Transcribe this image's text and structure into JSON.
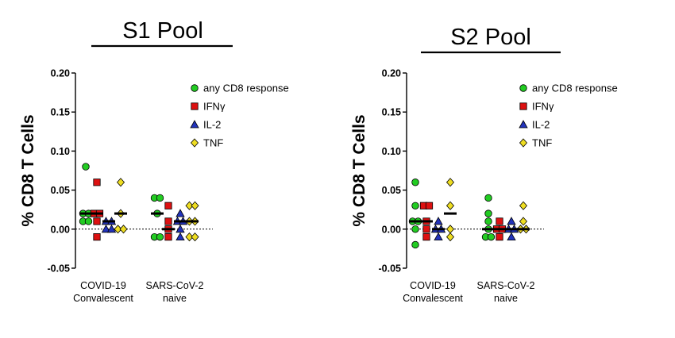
{
  "chart_data": [
    {
      "type": "scatter",
      "title": "S1 Pool",
      "ylabel": "% CD8 T Cells",
      "ylim": [
        -0.05,
        0.2
      ],
      "yticks": [
        "-0.05",
        "0.00",
        "0.05",
        "0.10",
        "0.15",
        "0.20"
      ],
      "categories": [
        "COVID-19\nConvalescent",
        "SARS-CoV-2\nnaive"
      ],
      "reference_line": 0,
      "legend_position": "top-right",
      "series": [
        {
          "name": "any CD8 response",
          "marker": "circle",
          "color": "#22cc22",
          "groups": [
            [
              0.08,
              0.02,
              0.02,
              0.01,
              0.01
            ],
            [
              0.04,
              0.04,
              0.02,
              -0.01,
              -0.01
            ]
          ],
          "medians": [
            0.02,
            0.02
          ]
        },
        {
          "name": "IFNγ",
          "marker": "square",
          "color": "#dd1111",
          "groups": [
            [
              0.06,
              0.02,
              0.02,
              0.01,
              -0.01
            ],
            [
              0.03,
              0.01,
              0.0,
              -0.01
            ]
          ],
          "medians": [
            0.02,
            0.0
          ]
        },
        {
          "name": "IL-2",
          "marker": "triangle",
          "color": "#2233bb",
          "groups": [
            [
              0.01,
              0.01,
              0.0,
              0.0
            ],
            [
              0.02,
              0.01,
              0.01,
              0.0,
              -0.01
            ]
          ],
          "medians": [
            0.01,
            0.01
          ]
        },
        {
          "name": "TNF",
          "marker": "diamond",
          "color": "#eedd22",
          "groups": [
            [
              0.06,
              0.02,
              0.0,
              0.0
            ],
            [
              0.03,
              0.03,
              0.01,
              0.01,
              -0.01,
              -0.01
            ]
          ],
          "medians": [
            0.02,
            0.01
          ]
        }
      ]
    },
    {
      "type": "scatter",
      "title": "S2 Pool",
      "ylabel": "% CD8 T Cells",
      "ylim": [
        -0.05,
        0.2
      ],
      "yticks": [
        "-0.05",
        "0.00",
        "0.05",
        "0.10",
        "0.15",
        "0.20"
      ],
      "categories": [
        "COVID-19\nConvalescent",
        "SARS-CoV-2\nnaive"
      ],
      "reference_line": 0,
      "legend_position": "top-right",
      "series": [
        {
          "name": "any CD8 response",
          "marker": "circle",
          "color": "#22cc22",
          "groups": [
            [
              0.06,
              0.03,
              0.01,
              0.01,
              0.0,
              -0.02
            ],
            [
              0.04,
              0.02,
              0.01,
              0.0,
              -0.01,
              -0.01
            ]
          ],
          "medians": [
            0.01,
            0.0
          ]
        },
        {
          "name": "IFNγ",
          "marker": "square",
          "color": "#dd1111",
          "groups": [
            [
              0.03,
              0.03,
              0.01,
              0.0,
              -0.01
            ],
            [
              0.01,
              0.0,
              0.0,
              -0.01
            ]
          ],
          "medians": [
            0.01,
            0.0
          ]
        },
        {
          "name": "IL-2",
          "marker": "triangle",
          "color": "#2233bb",
          "groups": [
            [
              0.01,
              0.0,
              0.0,
              -0.01
            ],
            [
              0.01,
              0.0,
              0.0,
              -0.01
            ]
          ],
          "medians": [
            0.0,
            0.0
          ]
        },
        {
          "name": "TNF",
          "marker": "diamond",
          "color": "#eedd22",
          "groups": [
            [
              0.06,
              0.03,
              0.0,
              -0.01
            ],
            [
              0.03,
              0.01,
              0.0,
              0.0
            ]
          ],
          "medians": [
            0.02,
            0.0
          ]
        }
      ]
    }
  ]
}
